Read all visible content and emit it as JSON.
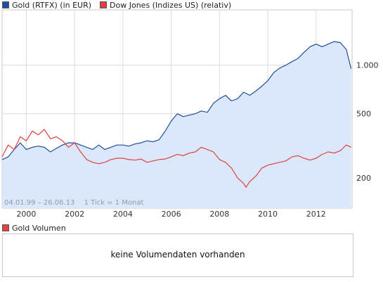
{
  "legend": {
    "gold_label": "Gold (RTFX) (in EUR)",
    "dow_label": "Dow Jones (Indizes US) (relativ)",
    "volume_label": "Gold Volumen"
  },
  "footer": {
    "date_range": "04.01.99 – 26.06.13",
    "tick_info": "1 Tick = 1 Monat"
  },
  "volume_panel": {
    "message": "keine Volumendaten vorhanden"
  },
  "colors": {
    "gold": "#1f4e9c",
    "gold_fill": "#dbe8fb",
    "dow": "#e04040",
    "grid": "#dcdcdc",
    "axis_text": "#333333"
  },
  "chart_data": {
    "type": "line",
    "title": "",
    "scale": "log",
    "xlim": [
      1999.0,
      2013.49
    ],
    "ylim": [
      130,
      2200
    ],
    "x_ticks": [
      "2000",
      "2002",
      "2004",
      "2006",
      "2008",
      "2010",
      "2012"
    ],
    "x_tick_values": [
      2000,
      2002,
      2004,
      2006,
      2008,
      2010,
      2012
    ],
    "y_ticks": [
      "200",
      "500",
      "1.000"
    ],
    "y_tick_values": [
      200,
      500,
      1000
    ],
    "grid": true,
    "legend": "top-left",
    "series": [
      {
        "name": "Gold (RTFX) (in EUR)",
        "style": "line-area",
        "x": [
          1999.0,
          1999.25,
          1999.5,
          1999.75,
          2000.0,
          2000.25,
          2000.5,
          2000.75,
          2001.0,
          2001.25,
          2001.5,
          2001.75,
          2002.0,
          2002.25,
          2002.5,
          2002.75,
          2003.0,
          2003.25,
          2003.5,
          2003.75,
          2004.0,
          2004.25,
          2004.5,
          2004.75,
          2005.0,
          2005.25,
          2005.5,
          2005.75,
          2006.0,
          2006.25,
          2006.5,
          2006.75,
          2007.0,
          2007.25,
          2007.5,
          2007.75,
          2008.0,
          2008.25,
          2008.5,
          2008.75,
          2009.0,
          2009.25,
          2009.5,
          2009.75,
          2010.0,
          2010.25,
          2010.5,
          2010.75,
          2011.0,
          2011.25,
          2011.5,
          2011.75,
          2012.0,
          2012.25,
          2012.5,
          2012.75,
          2013.0,
          2013.25,
          2013.45
        ],
        "values": [
          260,
          270,
          300,
          330,
          300,
          310,
          315,
          310,
          290,
          305,
          320,
          330,
          330,
          320,
          310,
          300,
          320,
          300,
          310,
          320,
          320,
          315,
          325,
          330,
          340,
          335,
          345,
          390,
          450,
          500,
          480,
          490,
          500,
          520,
          510,
          580,
          620,
          650,
          600,
          620,
          680,
          650,
          690,
          740,
          800,
          900,
          960,
          1000,
          1050,
          1100,
          1200,
          1300,
          1350,
          1300,
          1350,
          1400,
          1380,
          1250,
          950
        ]
      },
      {
        "name": "Dow Jones (Indizes US) (relativ)",
        "style": "line",
        "x": [
          1999.0,
          1999.25,
          1999.5,
          1999.75,
          2000.0,
          2000.25,
          2000.5,
          2000.75,
          2001.0,
          2001.25,
          2001.5,
          2001.75,
          2002.0,
          2002.25,
          2002.5,
          2002.75,
          2003.0,
          2003.25,
          2003.5,
          2003.75,
          2004.0,
          2004.25,
          2004.5,
          2004.75,
          2005.0,
          2005.25,
          2005.5,
          2005.75,
          2006.0,
          2006.25,
          2006.5,
          2006.75,
          2007.0,
          2007.25,
          2007.5,
          2007.75,
          2008.0,
          2008.25,
          2008.5,
          2008.75,
          2009.0,
          2009.1,
          2009.25,
          2009.5,
          2009.75,
          2010.0,
          2010.25,
          2010.5,
          2010.75,
          2011.0,
          2011.25,
          2011.5,
          2011.75,
          2012.0,
          2012.25,
          2012.5,
          2012.75,
          2013.0,
          2013.25,
          2013.45
        ],
        "values": [
          270,
          320,
          300,
          360,
          340,
          390,
          370,
          400,
          350,
          360,
          340,
          310,
          330,
          290,
          260,
          250,
          245,
          250,
          260,
          265,
          265,
          260,
          258,
          262,
          250,
          255,
          260,
          262,
          270,
          280,
          275,
          285,
          290,
          310,
          300,
          290,
          260,
          250,
          230,
          200,
          185,
          175,
          190,
          205,
          230,
          240,
          245,
          250,
          255,
          270,
          275,
          265,
          258,
          265,
          280,
          290,
          285,
          295,
          320,
          310
        ]
      }
    ]
  }
}
